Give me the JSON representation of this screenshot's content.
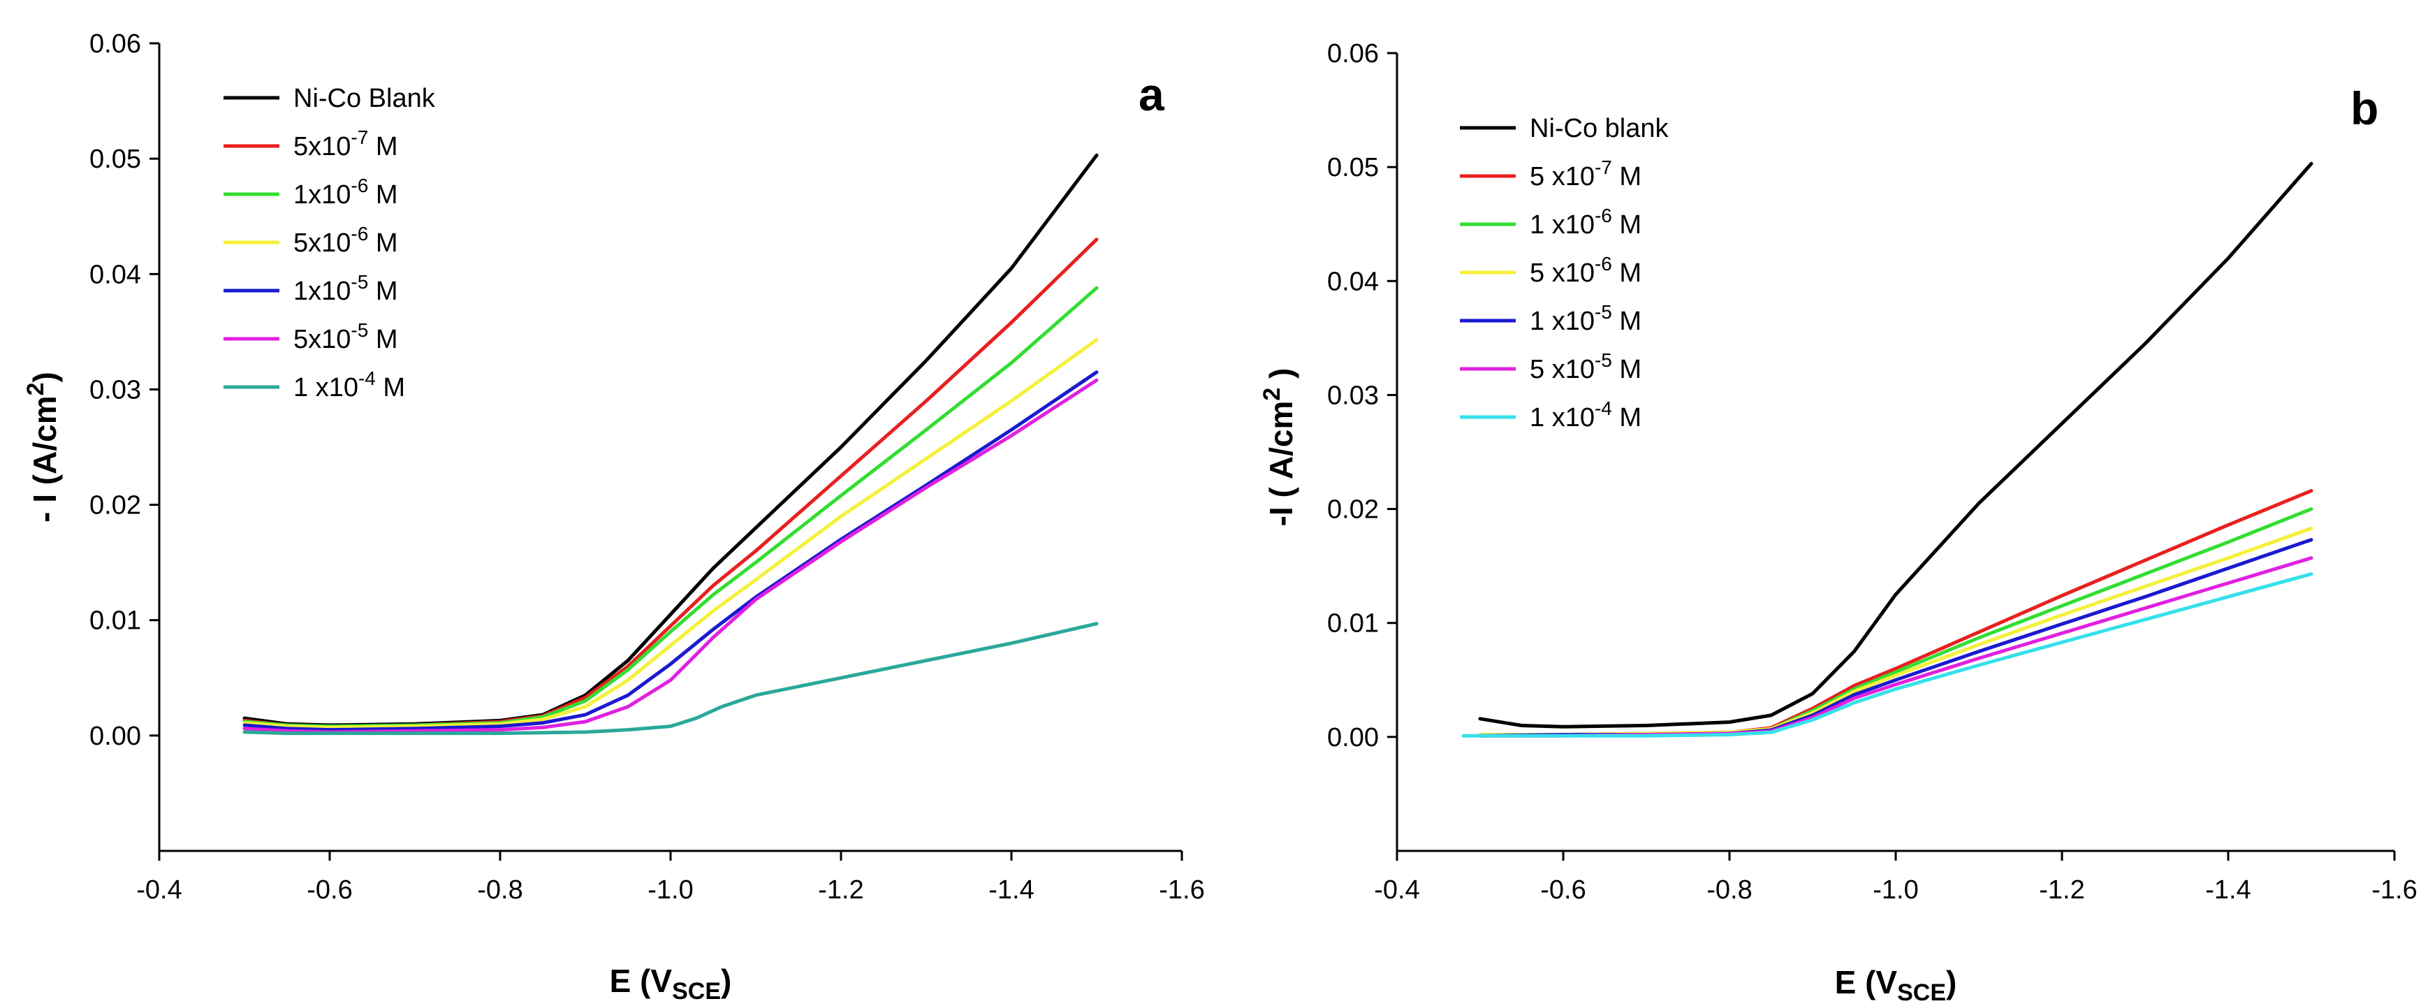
{
  "chart_data": [
    {
      "type": "line",
      "panel_label": "a",
      "xlabel": "E (V",
      "xlabel_sub": "SCE",
      "xlabel_close": ")",
      "ylabel": "- I (A/cm",
      "ylabel_sup": "2",
      "ylabel_close": ")",
      "xlim": [
        -0.4,
        -1.6
      ],
      "ylim": [
        -0.01,
        0.06
      ],
      "x_ticks": [
        "-0.4",
        "-0.6",
        "-0.8",
        "-1.0",
        "-1.2",
        "-1.4",
        "-1.6"
      ],
      "y_ticks": [
        "0.00",
        "0.01",
        "0.02",
        "0.03",
        "0.04",
        "0.05",
        "0.06"
      ],
      "x_tick_values": [
        -0.4,
        -0.6,
        -0.8,
        -1.0,
        -1.2,
        -1.4,
        -1.6
      ],
      "y_tick_values": [
        0.0,
        0.01,
        0.02,
        0.03,
        0.04,
        0.05,
        0.06
      ],
      "legend_location": "top-left",
      "series": [
        {
          "name": "Ni-Co Blank",
          "label": {
            "pre": "Ni-Co Blank",
            "sup": "",
            "post": ""
          },
          "color": "#000000",
          "x": [
            -0.5,
            -0.55,
            -0.6,
            -0.7,
            -0.8,
            -0.85,
            -0.9,
            -0.95,
            -1.0,
            -1.05,
            -1.1,
            -1.2,
            -1.3,
            -1.4,
            -1.5
          ],
          "y": [
            0.0015,
            0.001,
            0.0009,
            0.001,
            0.0013,
            0.0018,
            0.0035,
            0.0065,
            0.0105,
            0.0145,
            0.018,
            0.025,
            0.0325,
            0.0405,
            0.0503
          ]
        },
        {
          "name": "5x10-7 M",
          "label": {
            "pre": "5x10",
            "sup": "-7",
            "post": " M"
          },
          "color": "#e8201f",
          "x": [
            -0.5,
            -0.55,
            -0.6,
            -0.7,
            -0.8,
            -0.85,
            -0.9,
            -0.95,
            -1.0,
            -1.05,
            -1.1,
            -1.2,
            -1.3,
            -1.4,
            -1.5
          ],
          "y": [
            0.0013,
            0.0009,
            0.0008,
            0.0009,
            0.0012,
            0.0017,
            0.0033,
            0.006,
            0.0095,
            0.013,
            0.016,
            0.0225,
            0.029,
            0.0358,
            0.043
          ]
        },
        {
          "name": "1x10-6 M",
          "label": {
            "pre": "1x10",
            "sup": "-6",
            "post": " M"
          },
          "color": "#33dd33",
          "x": [
            -0.5,
            -0.55,
            -0.6,
            -0.7,
            -0.8,
            -0.85,
            -0.9,
            -0.95,
            -1.0,
            -1.05,
            -1.1,
            -1.2,
            -1.3,
            -1.4,
            -1.5
          ],
          "y": [
            0.0012,
            0.0009,
            0.0008,
            0.0009,
            0.0011,
            0.0016,
            0.003,
            0.0057,
            0.009,
            0.0122,
            0.015,
            0.0208,
            0.0265,
            0.0323,
            0.0388
          ]
        },
        {
          "name": "5x10-6 M",
          "label": {
            "pre": "5x10",
            "sup": "-6",
            "post": " M"
          },
          "color": "#f5f03a",
          "x": [
            -0.5,
            -0.55,
            -0.6,
            -0.7,
            -0.8,
            -0.85,
            -0.9,
            -0.95,
            -1.0,
            -1.05,
            -1.1,
            -1.2,
            -1.3,
            -1.4,
            -1.5
          ],
          "y": [
            0.0011,
            0.0008,
            0.0007,
            0.0008,
            0.001,
            0.0014,
            0.0025,
            0.0048,
            0.0078,
            0.0108,
            0.0135,
            0.019,
            0.024,
            0.029,
            0.0343
          ]
        },
        {
          "name": "1x10-5 M",
          "label": {
            "pre": "1x10",
            "sup": "-5",
            "post": " M"
          },
          "color": "#1a1ad0",
          "x": [
            -0.5,
            -0.55,
            -0.6,
            -0.7,
            -0.8,
            -0.85,
            -0.9,
            -0.95,
            -1.0,
            -1.05,
            -1.1,
            -1.2,
            -1.3,
            -1.4,
            -1.5
          ],
          "y": [
            0.0009,
            0.0006,
            0.0005,
            0.0006,
            0.0008,
            0.0011,
            0.0018,
            0.0035,
            0.0062,
            0.0092,
            0.012,
            0.017,
            0.0217,
            0.0265,
            0.0315
          ]
        },
        {
          "name": "5x10-5 M",
          "label": {
            "pre": "5x10",
            "sup": "-5",
            "post": " M"
          },
          "color": "#e020e0",
          "x": [
            -0.5,
            -0.55,
            -0.6,
            -0.7,
            -0.8,
            -0.85,
            -0.9,
            -0.95,
            -1.0,
            -1.05,
            -1.1,
            -1.2,
            -1.3,
            -1.4,
            -1.5
          ],
          "y": [
            0.0006,
            0.0004,
            0.0003,
            0.0004,
            0.0005,
            0.0007,
            0.0012,
            0.0025,
            0.0048,
            0.0085,
            0.0118,
            0.0168,
            0.0215,
            0.026,
            0.0308
          ]
        },
        {
          "name": "1 x10-4 M",
          "label": {
            "pre": "1 x10",
            "sup": "-4",
            "post": " M"
          },
          "color": "#2aa89a",
          "x": [
            -0.5,
            -0.55,
            -0.6,
            -0.7,
            -0.8,
            -0.9,
            -0.95,
            -1.0,
            -1.03,
            -1.06,
            -1.1,
            -1.2,
            -1.3,
            -1.4,
            -1.5
          ],
          "y": [
            0.0003,
            0.0002,
            0.0002,
            0.0002,
            0.0002,
            0.0003,
            0.0005,
            0.0008,
            0.0015,
            0.0025,
            0.0035,
            0.005,
            0.0065,
            0.008,
            0.0097
          ]
        }
      ]
    },
    {
      "type": "line",
      "panel_label": "b",
      "xlabel": "E (V",
      "xlabel_sub": "SCE",
      "xlabel_close": ")",
      "ylabel": "-I ( A/cm",
      "ylabel_sup": "2",
      "ylabel_close": " )",
      "xlim": [
        -0.4,
        -1.6
      ],
      "ylim": [
        -0.01,
        0.06
      ],
      "x_ticks": [
        "-0.4",
        "-0.6",
        "-0.8",
        "-1.0",
        "-1.2",
        "-1.4",
        "-1.6"
      ],
      "y_ticks": [
        "0.00",
        "0.01",
        "0.02",
        "0.03",
        "0.04",
        "0.05",
        "0.06"
      ],
      "x_tick_values": [
        -0.4,
        -0.6,
        -0.8,
        -1.0,
        -1.2,
        -1.4,
        -1.6
      ],
      "y_tick_values": [
        0.0,
        0.01,
        0.02,
        0.03,
        0.04,
        0.05,
        0.06
      ],
      "legend_location": "top-left",
      "series": [
        {
          "name": "Ni-Co blank",
          "label": {
            "pre": "Ni-Co blank",
            "sup": "",
            "post": ""
          },
          "color": "#000000",
          "x": [
            -0.5,
            -0.55,
            -0.6,
            -0.7,
            -0.8,
            -0.85,
            -0.9,
            -0.95,
            -1.0,
            -1.05,
            -1.1,
            -1.2,
            -1.3,
            -1.4,
            -1.5
          ],
          "y": [
            0.0016,
            0.001,
            0.0009,
            0.001,
            0.0013,
            0.0019,
            0.0038,
            0.0075,
            0.0125,
            0.0165,
            0.0205,
            0.0275,
            0.0345,
            0.042,
            0.0503
          ]
        },
        {
          "name": "5 x10-7 M",
          "label": {
            "pre": "5 x10",
            "sup": "-7",
            "post": " M"
          },
          "color": "#e8201f",
          "x": [
            -0.5,
            -0.6,
            -0.7,
            -0.8,
            -0.85,
            -0.9,
            -0.95,
            -1.0,
            -1.1,
            -1.2,
            -1.3,
            -1.4,
            -1.5
          ],
          "y": [
            0.0002,
            0.0002,
            0.0003,
            0.0004,
            0.0008,
            0.0025,
            0.0045,
            0.006,
            0.0092,
            0.0124,
            0.0155,
            0.0186,
            0.0216
          ]
        },
        {
          "name": "1 x10-6 M",
          "label": {
            "pre": "1 x10",
            "sup": "-6",
            "post": " M"
          },
          "color": "#33dd33",
          "x": [
            -0.5,
            -0.6,
            -0.7,
            -0.8,
            -0.85,
            -0.9,
            -0.95,
            -1.0,
            -1.1,
            -1.2,
            -1.3,
            -1.4,
            -1.5
          ],
          "y": [
            0.0002,
            0.0002,
            0.0003,
            0.0004,
            0.0007,
            0.0023,
            0.0042,
            0.0057,
            0.0087,
            0.0115,
            0.0143,
            0.0171,
            0.02
          ]
        },
        {
          "name": "5 x10-6 M",
          "label": {
            "pre": "5 x10",
            "sup": "-6",
            "post": " M"
          },
          "color": "#f5f03a",
          "x": [
            -0.5,
            -0.6,
            -0.7,
            -0.8,
            -0.85,
            -0.9,
            -0.95,
            -1.0,
            -1.1,
            -1.2,
            -1.3,
            -1.4,
            -1.5
          ],
          "y": [
            0.0002,
            0.0002,
            0.0003,
            0.0004,
            0.0007,
            0.0021,
            0.004,
            0.0054,
            0.0081,
            0.0107,
            0.0132,
            0.0157,
            0.0183
          ]
        },
        {
          "name": "1 x10-5 M",
          "label": {
            "pre": "1 x10",
            "sup": "-5",
            "post": " M"
          },
          "color": "#1a1ad0",
          "x": [
            -0.5,
            -0.6,
            -0.7,
            -0.8,
            -0.85,
            -0.9,
            -0.95,
            -1.0,
            -1.1,
            -1.2,
            -1.3,
            -1.4,
            -1.5
          ],
          "y": [
            0.0001,
            0.0002,
            0.0002,
            0.0003,
            0.0006,
            0.0019,
            0.0037,
            0.005,
            0.0075,
            0.0099,
            0.0123,
            0.0148,
            0.0173
          ]
        },
        {
          "name": "5 x10-5 M",
          "label": {
            "pre": "5 x10",
            "sup": "-5",
            "post": " M"
          },
          "color": "#e020e0",
          "x": [
            -0.5,
            -0.6,
            -0.7,
            -0.8,
            -0.85,
            -0.9,
            -0.95,
            -1.0,
            -1.1,
            -1.2,
            -1.3,
            -1.4,
            -1.5
          ],
          "y": [
            0.0001,
            0.0001,
            0.0002,
            0.0003,
            0.0005,
            0.0017,
            0.0034,
            0.0046,
            0.0069,
            0.0091,
            0.0113,
            0.0135,
            0.0157
          ]
        },
        {
          "name": "1 x10-4 M",
          "label": {
            "pre": "1 x10",
            "sup": "-4",
            "post": " M"
          },
          "color": "#36e0ea",
          "x": [
            -0.48,
            -0.6,
            -0.7,
            -0.8,
            -0.85,
            -0.9,
            -0.95,
            -1.0,
            -1.1,
            -1.2,
            -1.3,
            -1.4,
            -1.5
          ],
          "y": [
            0.0001,
            0.0001,
            0.0001,
            0.0002,
            0.0004,
            0.0015,
            0.003,
            0.0042,
            0.0063,
            0.0083,
            0.0103,
            0.0123,
            0.0143
          ]
        }
      ]
    }
  ]
}
